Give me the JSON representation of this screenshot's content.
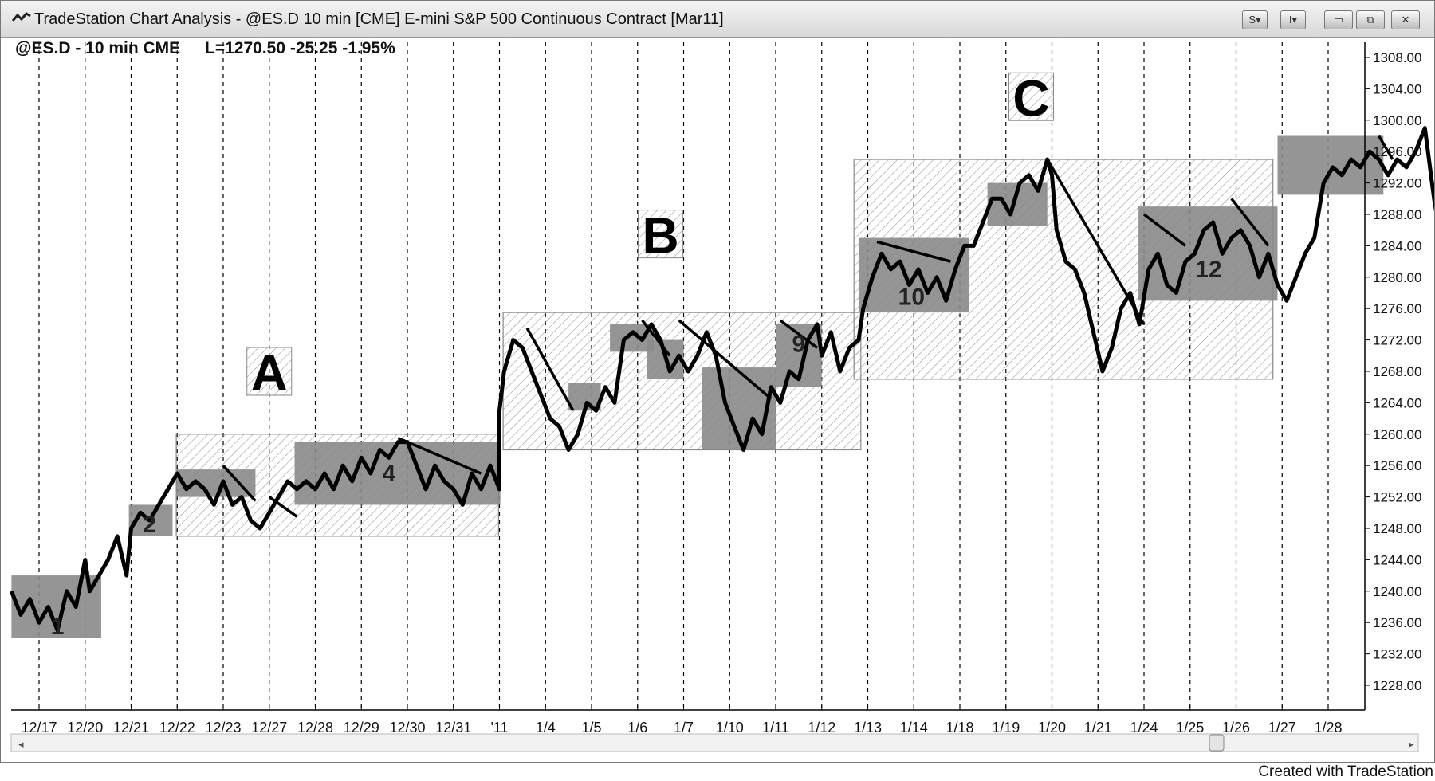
{
  "window": {
    "title": "TradeStation Chart Analysis - @ES.D 10 min [CME] E-mini S&P 500 Continuous Contract [Mar11]",
    "buttons": {
      "style": "S",
      "indicator": "I",
      "minimize": "▭",
      "restore": "⧉",
      "close": "✕"
    }
  },
  "header": {
    "symbol": "@ES.D - 10 min CME",
    "quote": "L=1270.50 -25.25 -1.95%"
  },
  "footer": {
    "credit": "Created with TradeStation"
  },
  "colors": {
    "price": "#000000",
    "box": "#8a8a8a",
    "hatch": "#9a9a9a",
    "grid": "#000000"
  },
  "chart_data": {
    "type": "line",
    "title": "@ES.D - 10 min CME",
    "ylim": [
      1224,
      1311
    ],
    "y_ticks": [
      "1308.00",
      "1304.00",
      "1300.00",
      "1296.00",
      "1292.00",
      "1288.00",
      "1284.00",
      "1280.00",
      "1276.00",
      "1272.00",
      "1268.00",
      "1264.00",
      "1260.00",
      "1256.00",
      "1252.00",
      "1248.00",
      "1244.00",
      "1240.00",
      "1236.00",
      "1232.00",
      "1228.00"
    ],
    "x_labels": [
      "12/17",
      "12/20",
      "12/21",
      "12/22",
      "12/23",
      "12/27",
      "12/28",
      "12/29",
      "12/30",
      "12/31",
      "'11",
      "1/4",
      "1/5",
      "1/6",
      "1/7",
      "1/10",
      "1/11",
      "1/12",
      "1/13",
      "1/14",
      "1/18",
      "1/19",
      "1/20",
      "1/21",
      "1/24",
      "1/25",
      "1/26",
      "1/27",
      "1/28"
    ],
    "grid": "vertical dashed at each session",
    "price_path": [
      [
        -0.6,
        1240
      ],
      [
        -0.4,
        1237
      ],
      [
        -0.2,
        1239
      ],
      [
        0.0,
        1236
      ],
      [
        0.2,
        1238
      ],
      [
        0.4,
        1235
      ],
      [
        0.6,
        1240
      ],
      [
        0.8,
        1238
      ],
      [
        1.0,
        1244
      ],
      [
        1.1,
        1240
      ],
      [
        1.3,
        1242
      ],
      [
        1.5,
        1244
      ],
      [
        1.7,
        1247
      ],
      [
        1.9,
        1242
      ],
      [
        2.0,
        1248
      ],
      [
        2.2,
        1250
      ],
      [
        2.4,
        1249
      ],
      [
        2.6,
        1251
      ],
      [
        2.8,
        1253
      ],
      [
        3.0,
        1255
      ],
      [
        3.2,
        1253
      ],
      [
        3.4,
        1254
      ],
      [
        3.6,
        1253
      ],
      [
        3.8,
        1251
      ],
      [
        4.0,
        1254
      ],
      [
        4.2,
        1251
      ],
      [
        4.4,
        1252
      ],
      [
        4.6,
        1249
      ],
      [
        4.8,
        1248
      ],
      [
        5.0,
        1250
      ],
      [
        5.2,
        1252
      ],
      [
        5.4,
        1254
      ],
      [
        5.6,
        1253
      ],
      [
        5.8,
        1254
      ],
      [
        6.0,
        1253
      ],
      [
        6.2,
        1255
      ],
      [
        6.4,
        1253
      ],
      [
        6.6,
        1256
      ],
      [
        6.8,
        1254
      ],
      [
        7.0,
        1257
      ],
      [
        7.2,
        1255
      ],
      [
        7.4,
        1258
      ],
      [
        7.6,
        1257
      ],
      [
        7.8,
        1259
      ],
      [
        8.0,
        1259
      ],
      [
        8.2,
        1256
      ],
      [
        8.4,
        1253
      ],
      [
        8.6,
        1256
      ],
      [
        8.8,
        1254
      ],
      [
        9.0,
        1253
      ],
      [
        9.2,
        1251
      ],
      [
        9.4,
        1255
      ],
      [
        9.6,
        1253
      ],
      [
        9.8,
        1256
      ],
      [
        10.0,
        1253
      ],
      [
        10.0,
        1263
      ],
      [
        10.1,
        1268
      ],
      [
        10.3,
        1272
      ],
      [
        10.5,
        1271
      ],
      [
        10.7,
        1268
      ],
      [
        10.9,
        1265
      ],
      [
        11.1,
        1262
      ],
      [
        11.3,
        1261
      ],
      [
        11.5,
        1258
      ],
      [
        11.7,
        1260
      ],
      [
        11.9,
        1264
      ],
      [
        12.1,
        1263
      ],
      [
        12.3,
        1266
      ],
      [
        12.5,
        1264
      ],
      [
        12.7,
        1272
      ],
      [
        12.9,
        1273
      ],
      [
        13.1,
        1272
      ],
      [
        13.3,
        1274
      ],
      [
        13.5,
        1272
      ],
      [
        13.7,
        1268
      ],
      [
        13.9,
        1270
      ],
      [
        14.1,
        1268
      ],
      [
        14.3,
        1270
      ],
      [
        14.5,
        1273
      ],
      [
        14.7,
        1270
      ],
      [
        14.9,
        1264
      ],
      [
        15.1,
        1261
      ],
      [
        15.3,
        1258
      ],
      [
        15.5,
        1262
      ],
      [
        15.7,
        1260
      ],
      [
        15.9,
        1266
      ],
      [
        16.1,
        1264
      ],
      [
        16.3,
        1268
      ],
      [
        16.5,
        1267
      ],
      [
        16.7,
        1272
      ],
      [
        16.9,
        1274
      ],
      [
        17.0,
        1270
      ],
      [
        17.2,
        1273
      ],
      [
        17.4,
        1268
      ],
      [
        17.6,
        1271
      ],
      [
        17.8,
        1272
      ],
      [
        17.9,
        1276
      ],
      [
        18.1,
        1280
      ],
      [
        18.3,
        1283
      ],
      [
        18.5,
        1281
      ],
      [
        18.7,
        1282
      ],
      [
        18.9,
        1279
      ],
      [
        19.1,
        1281
      ],
      [
        19.3,
        1278
      ],
      [
        19.5,
        1280
      ],
      [
        19.7,
        1277
      ],
      [
        19.9,
        1281
      ],
      [
        20.1,
        1284
      ],
      [
        20.3,
        1284
      ],
      [
        20.5,
        1287
      ],
      [
        20.7,
        1290
      ],
      [
        20.9,
        1290
      ],
      [
        21.1,
        1288
      ],
      [
        21.3,
        1292
      ],
      [
        21.5,
        1293
      ],
      [
        21.7,
        1291
      ],
      [
        21.9,
        1295
      ],
      [
        22.0,
        1293
      ],
      [
        22.1,
        1286
      ],
      [
        22.3,
        1282
      ],
      [
        22.5,
        1281
      ],
      [
        22.7,
        1278
      ],
      [
        22.9,
        1273
      ],
      [
        23.1,
        1268
      ],
      [
        23.3,
        1271
      ],
      [
        23.5,
        1276
      ],
      [
        23.7,
        1278
      ],
      [
        23.9,
        1274
      ],
      [
        24.1,
        1281
      ],
      [
        24.3,
        1283
      ],
      [
        24.5,
        1279
      ],
      [
        24.7,
        1278
      ],
      [
        24.9,
        1282
      ],
      [
        25.1,
        1283
      ],
      [
        25.3,
        1286
      ],
      [
        25.5,
        1287
      ],
      [
        25.7,
        1283
      ],
      [
        25.9,
        1285
      ],
      [
        26.1,
        1286
      ],
      [
        26.3,
        1284
      ],
      [
        26.5,
        1280
      ],
      [
        26.7,
        1283
      ],
      [
        26.9,
        1279
      ],
      [
        27.1,
        1277
      ],
      [
        27.3,
        1280
      ],
      [
        27.5,
        1283
      ],
      [
        27.7,
        1285
      ],
      [
        27.9,
        1292
      ],
      [
        28.1,
        1294
      ],
      [
        28.3,
        1293
      ],
      [
        28.5,
        1295
      ],
      [
        28.7,
        1294
      ],
      [
        28.9,
        1296
      ],
      [
        29.1,
        1295
      ],
      [
        29.3,
        1293
      ],
      [
        29.5,
        1295
      ],
      [
        29.7,
        1294
      ],
      [
        29.9,
        1296
      ],
      [
        30.1,
        1299
      ],
      [
        30.3,
        1290
      ],
      [
        30.5,
        1283
      ],
      [
        30.7,
        1278
      ],
      [
        30.9,
        1275
      ],
      [
        31.0,
        1271
      ]
    ],
    "hatched_boxes": [
      {
        "label": "A",
        "x0": 2.98,
        "x1": 9.98,
        "y0": 1247,
        "y1": 1260
      },
      {
        "label": "B",
        "x0": 10.08,
        "x1": 17.85,
        "y0": 1258,
        "y1": 1275.5
      },
      {
        "label": "C",
        "x0": 17.7,
        "x1": 26.8,
        "y0": 1267,
        "y1": 1295
      }
    ],
    "shaded_boxes": [
      {
        "x0": -0.6,
        "x1": 1.35,
        "y0": 1234,
        "y1": 1242,
        "label": "1"
      },
      {
        "x0": 1.95,
        "x1": 2.9,
        "y0": 1247,
        "y1": 1251,
        "label": "2"
      },
      {
        "x0": 2.98,
        "x1": 4.7,
        "y0": 1252,
        "y1": 1255.5,
        "label": ""
      },
      {
        "x0": 5.55,
        "x1": 10.02,
        "y0": 1251,
        "y1": 1259,
        "label": "4"
      },
      {
        "x0": 11.5,
        "x1": 12.2,
        "y0": 1263,
        "y1": 1266.5,
        "label": ""
      },
      {
        "x0": 12.4,
        "x1": 13.35,
        "y0": 1270.5,
        "y1": 1274,
        "label": ""
      },
      {
        "x0": 13.2,
        "x1": 14.0,
        "y0": 1267,
        "y1": 1272,
        "label": ""
      },
      {
        "x0": 14.4,
        "x1": 16.0,
        "y0": 1258,
        "y1": 1268.5,
        "label": ""
      },
      {
        "x0": 16.0,
        "x1": 17.0,
        "y0": 1266,
        "y1": 1274,
        "label": "9"
      },
      {
        "x0": 17.8,
        "x1": 20.2,
        "y0": 1275.5,
        "y1": 1285,
        "label": "10"
      },
      {
        "x0": 20.6,
        "x1": 21.9,
        "y0": 1286.5,
        "y1": 1292,
        "label": ""
      },
      {
        "x0": 23.88,
        "x1": 26.9,
        "y0": 1277,
        "y1": 1289,
        "label": "12"
      },
      {
        "x0": 26.9,
        "x1": 29.2,
        "y0": 1290.5,
        "y1": 1298,
        "label": ""
      }
    ],
    "trend_lines": [
      [
        [
          4.0,
          1256
        ],
        [
          4.7,
          1251.5
        ]
      ],
      [
        [
          5.0,
          1252
        ],
        [
          5.6,
          1249.5
        ]
      ],
      [
        [
          7.8,
          1259.5
        ],
        [
          9.6,
          1255
        ]
      ],
      [
        [
          10.6,
          1273.5
        ],
        [
          11.6,
          1263
        ]
      ],
      [
        [
          13.1,
          1274.5
        ],
        [
          13.7,
          1270
        ]
      ],
      [
        [
          13.9,
          1274.5
        ],
        [
          15.9,
          1264.5
        ]
      ],
      [
        [
          16.1,
          1274.5
        ],
        [
          16.9,
          1271
        ]
      ],
      [
        [
          18.2,
          1284.5
        ],
        [
          19.8,
          1282
        ]
      ],
      [
        [
          21.9,
          1295
        ],
        [
          24.0,
          1274
        ]
      ],
      [
        [
          24.0,
          1288
        ],
        [
          24.9,
          1284
        ]
      ],
      [
        [
          25.9,
          1290
        ],
        [
          26.7,
          1284
        ]
      ],
      [
        [
          29.1,
          1298
        ],
        [
          29.4,
          1295
        ]
      ]
    ],
    "letter_labels": [
      {
        "text": "A",
        "x": 5.0,
        "y": 1268
      },
      {
        "text": "B",
        "x": 13.5,
        "y": 1285.5
      },
      {
        "text": "C",
        "x": 21.55,
        "y": 1303
      }
    ],
    "number_labels": [
      {
        "text": "1",
        "x": 0.4,
        "y": 1235.5
      },
      {
        "text": "2",
        "x": 2.4,
        "y": 1248.5
      },
      {
        "text": "4",
        "x": 7.6,
        "y": 1255
      },
      {
        "text": "9",
        "x": 16.5,
        "y": 1271.5
      },
      {
        "text": "10",
        "x": 18.95,
        "y": 1277.5
      },
      {
        "text": "12",
        "x": 25.4,
        "y": 1281
      }
    ]
  }
}
